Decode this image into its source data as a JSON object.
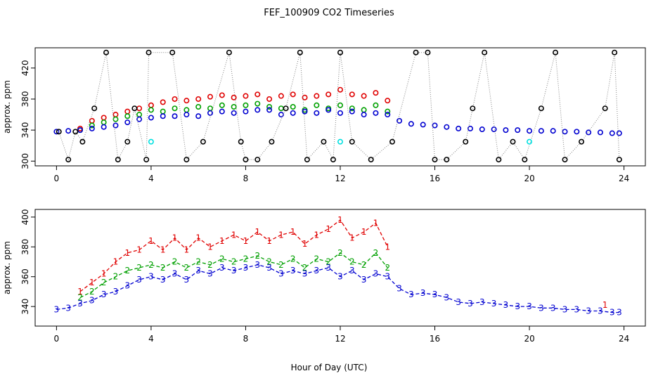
{
  "chart_data": {
    "title": "FEF_100909  CO2 Timeseries",
    "xlabel": "Hour of Day (UTC)",
    "colors": {
      "red": "#e00000",
      "green": "#00a000",
      "blue": "#0000d0",
      "black": "#000000",
      "cyan": "#00e0e0",
      "connector": "#808080"
    },
    "panels": [
      {
        "type": "scatter",
        "ylabel": "approx. ppm",
        "xlim": [
          0,
          24
        ],
        "ylim": [
          300,
          440
        ],
        "xticks": [
          0,
          4,
          8,
          12,
          16,
          20,
          24
        ],
        "yticks": [
          300,
          340,
          380,
          420
        ],
        "line_style": "gray dotted connector between successive black circles",
        "series": [
          {
            "color_key": "red",
            "marker": "circle",
            "x": [
              1.0,
              1.5,
              2.0,
              2.5,
              3.0,
              3.5,
              4.0,
              4.5,
              5.0,
              5.5,
              6.0,
              6.5,
              7.0,
              7.5,
              8.0,
              8.5,
              9.0,
              9.5,
              10.0,
              10.5,
              11.0,
              11.5,
              12.0,
              12.5,
              13.0,
              13.5,
              14.0
            ],
            "y": [
              342,
              352,
              356,
              360,
              364,
              368,
              372,
              376,
              380,
              378,
              380,
              383,
              385,
              382,
              384,
              386,
              380,
              384,
              386,
              382,
              384,
              386,
              392,
              386,
              384,
              388,
              378
            ]
          },
          {
            "color_key": "green",
            "marker": "circle",
            "x": [
              1.0,
              1.5,
              2.0,
              2.5,
              3.0,
              3.5,
              4.0,
              4.5,
              5.0,
              5.5,
              6.0,
              6.5,
              7.0,
              7.5,
              8.0,
              8.5,
              9.0,
              9.5,
              10.0,
              10.5,
              11.0,
              11.5,
              12.0,
              12.5,
              13.0,
              13.5,
              14.0
            ],
            "y": [
              340,
              346,
              350,
              354,
              358,
              360,
              366,
              364,
              368,
              366,
              370,
              368,
              372,
              370,
              372,
              374,
              370,
              368,
              370,
              366,
              372,
              368,
              372,
              368,
              366,
              372,
              364
            ]
          },
          {
            "color_key": "blue",
            "marker": "circle",
            "x": [
              0.0,
              0.5,
              1.0,
              1.5,
              2.0,
              2.5,
              3.0,
              3.5,
              4.0,
              4.5,
              5.0,
              5.5,
              6.0,
              6.5,
              7.0,
              7.5,
              8.0,
              8.5,
              9.0,
              9.5,
              10.0,
              10.5,
              11.0,
              11.5,
              12.0,
              12.5,
              13.0,
              13.5,
              14.0,
              14.5,
              15.0,
              15.5,
              16.0,
              16.5,
              17.0,
              17.5,
              18.0,
              18.5,
              19.0,
              19.5,
              20.0,
              20.5,
              21.0,
              21.5,
              22.0,
              22.5,
              23.0,
              23.5,
              23.8
            ],
            "y": [
              338,
              339,
              340,
              342,
              344,
              346,
              350,
              354,
              356,
              358,
              358,
              360,
              358,
              362,
              364,
              362,
              364,
              366,
              366,
              360,
              362,
              364,
              362,
              366,
              362,
              364,
              360,
              362,
              360,
              352,
              348,
              347,
              346,
              344,
              342,
              342,
              341,
              341,
              340,
              340,
              339,
              339,
              339,
              338,
              338,
              337,
              337,
              336,
              336
            ]
          },
          {
            "color_key": "black",
            "marker": "circle",
            "x": [
              0.1,
              0.5,
              0.8,
              1.1,
              1.6,
              2.1,
              2.6,
              3.0,
              3.3,
              3.8,
              3.9,
              4.9,
              5.5,
              6.2,
              7.3,
              7.8,
              8.0,
              8.5,
              9.1,
              9.7,
              10.3,
              10.6,
              11.3,
              11.7,
              12.0,
              12.5,
              13.3,
              14.2,
              15.2,
              15.7,
              16.0,
              16.5,
              17.3,
              17.6,
              18.1,
              18.7,
              19.3,
              19.8,
              20.5,
              21.1,
              21.5,
              22.2,
              23.2,
              23.6,
              23.8
            ],
            "y": [
              338,
              302,
              338,
              325,
              368,
              440,
              302,
              325,
              368,
              302,
              440,
              440,
              302,
              325,
              440,
              325,
              302,
              302,
              325,
              368,
              440,
              302,
              325,
              302,
              440,
              325,
              302,
              325,
              440,
              440,
              302,
              302,
              325,
              368,
              440,
              302,
              325,
              302,
              368,
              440,
              302,
              325,
              368,
              440,
              302
            ]
          },
          {
            "color_key": "cyan",
            "marker": "circle",
            "x": [
              4.0,
              12.0,
              20.0
            ],
            "y": [
              325,
              325,
              325
            ]
          }
        ]
      },
      {
        "type": "line",
        "ylabel": "approx. ppm",
        "xlim": [
          0,
          24
        ],
        "ylim": [
          330,
          402
        ],
        "xticks": [
          0,
          4,
          8,
          12,
          16,
          20,
          24
        ],
        "yticks": [
          340,
          360,
          380,
          400
        ],
        "series": [
          {
            "color_key": "red",
            "marker": "1",
            "line": "dashed",
            "x": [
              1.0,
              1.5,
              2.0,
              2.5,
              3.0,
              3.5,
              4.0,
              4.5,
              5.0,
              5.5,
              6.0,
              6.5,
              7.0,
              7.5,
              8.0,
              8.5,
              9.0,
              9.5,
              10.0,
              10.5,
              11.0,
              11.5,
              12.0,
              12.5,
              13.0,
              13.5,
              14.0,
              23.2
            ],
            "y": [
              350,
              356,
              362,
              370,
              376,
              378,
              384,
              378,
              386,
              378,
              386,
              380,
              384,
              388,
              384,
              390,
              384,
              388,
              390,
              382,
              388,
              392,
              398,
              386,
              390,
              396,
              380,
              341
            ]
          },
          {
            "color_key": "green",
            "marker": "2",
            "line": "dashed",
            "x": [
              1.0,
              1.5,
              2.0,
              2.5,
              3.0,
              3.5,
              4.0,
              4.5,
              5.0,
              5.5,
              6.0,
              6.5,
              7.0,
              7.5,
              8.0,
              8.5,
              9.0,
              9.5,
              10.0,
              10.5,
              11.0,
              11.5,
              12.0,
              12.5,
              13.0,
              13.5,
              14.0
            ],
            "y": [
              346,
              350,
              356,
              360,
              364,
              366,
              368,
              366,
              370,
              366,
              370,
              368,
              372,
              370,
              372,
              374,
              370,
              368,
              372,
              366,
              372,
              370,
              376,
              370,
              368,
              376,
              366
            ]
          },
          {
            "color_key": "blue",
            "marker": "3",
            "line": "dashed",
            "x": [
              0.0,
              0.5,
              1.0,
              1.5,
              2.0,
              2.5,
              3.0,
              3.5,
              4.0,
              4.5,
              5.0,
              5.5,
              6.0,
              6.5,
              7.0,
              7.5,
              8.0,
              8.5,
              9.0,
              9.5,
              10.0,
              10.5,
              11.0,
              11.5,
              12.0,
              12.5,
              13.0,
              13.5,
              14.0,
              14.5,
              15.0,
              15.5,
              16.0,
              16.5,
              17.0,
              17.5,
              18.0,
              18.5,
              19.0,
              19.5,
              20.0,
              20.5,
              21.0,
              21.5,
              22.0,
              22.5,
              23.0,
              23.5,
              23.8
            ],
            "y": [
              338,
              339,
              342,
              344,
              348,
              350,
              354,
              358,
              360,
              358,
              362,
              358,
              364,
              362,
              366,
              364,
              366,
              368,
              366,
              362,
              364,
              362,
              364,
              366,
              360,
              364,
              358,
              362,
              360,
              352,
              348,
              349,
              348,
              346,
              343,
              342,
              343,
              342,
              341,
              340,
              340,
              339,
              339,
              338,
              338,
              337,
              337,
              336,
              336
            ]
          }
        ]
      }
    ]
  }
}
